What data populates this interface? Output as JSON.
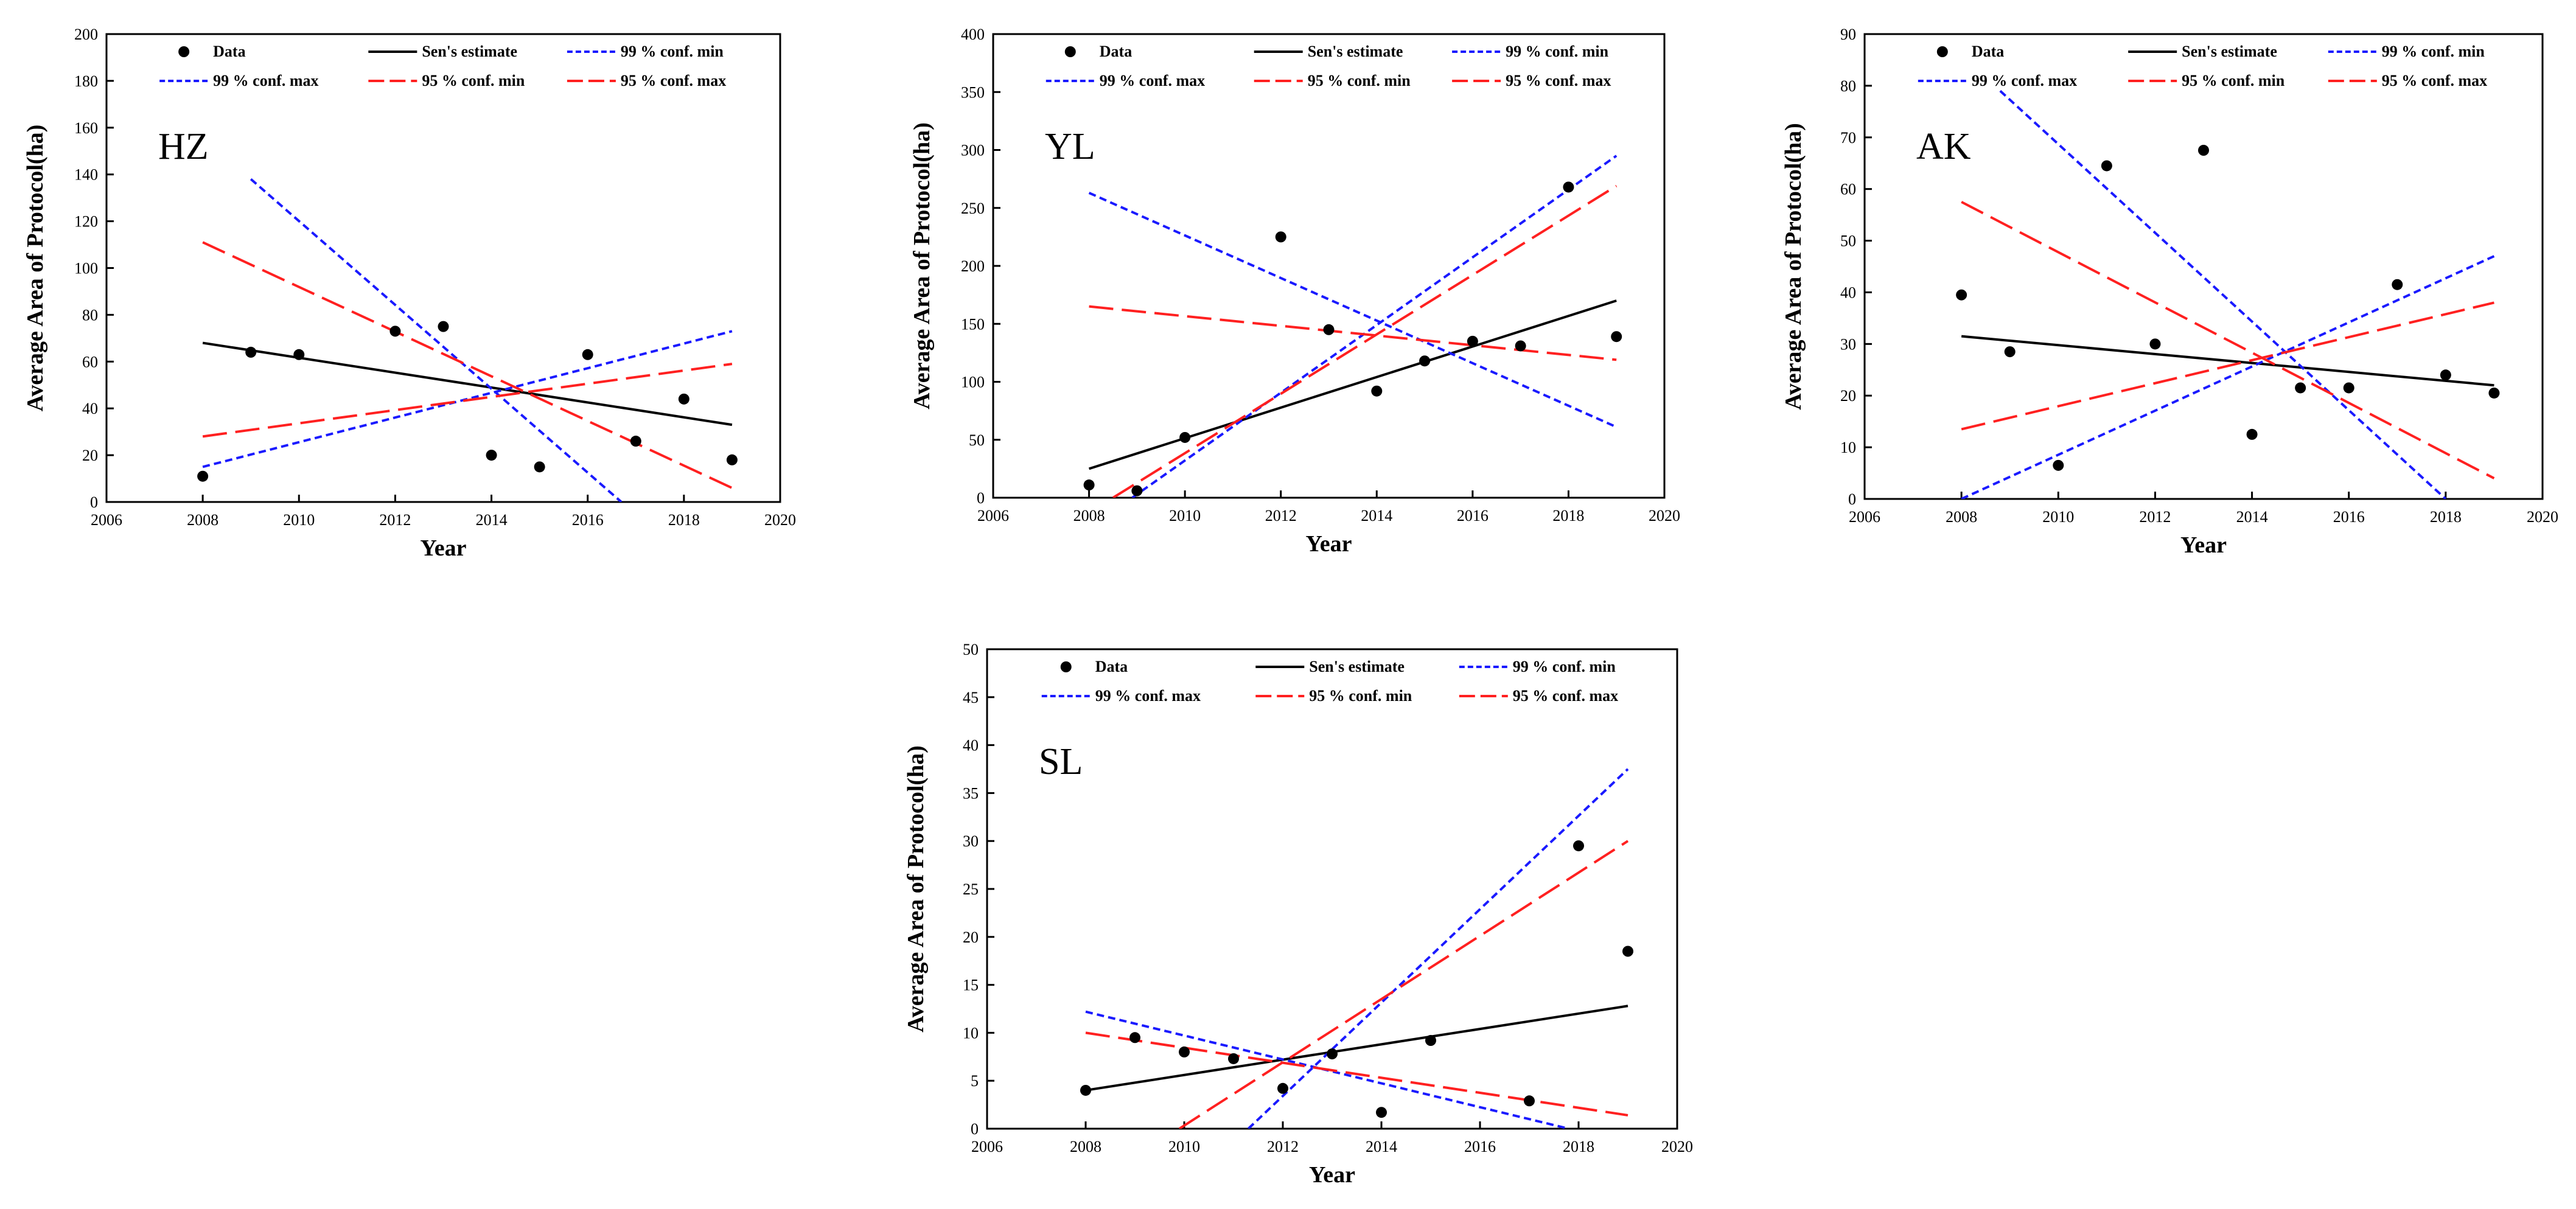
{
  "figure": {
    "legend_labels": [
      "Data",
      "Sen's estimate",
      "99 % conf. min",
      "99 % conf. max",
      "95 % conf. min",
      "95 % conf. max"
    ],
    "colors": {
      "data": "#000000",
      "sen": "#000000",
      "conf99": "#1a1aff",
      "conf95": "#ff2020"
    }
  },
  "chart_data": [
    {
      "type": "scatter",
      "label": "HZ",
      "xlabel": "Year",
      "ylabel": "Average Area of Protocol(ha)",
      "xlim": [
        2006,
        2020
      ],
      "ylim": [
        0,
        200
      ],
      "xticks": [
        2006,
        2008,
        2010,
        2012,
        2014,
        2016,
        2018,
        2020
      ],
      "yticks": [
        0,
        20,
        40,
        60,
        80,
        100,
        120,
        140,
        160,
        180,
        200
      ],
      "legend": "top",
      "points": {
        "x": [
          2008,
          2009,
          2010,
          2012,
          2013,
          2014,
          2015,
          2016,
          2017,
          2018,
          2019
        ],
        "y": [
          11,
          64,
          63,
          73,
          75,
          20,
          15,
          63,
          26,
          44,
          18
        ]
      },
      "lines": [
        {
          "name": "Sen's estimate",
          "x": [
            2008,
            2019
          ],
          "y": [
            68,
            33
          ]
        },
        {
          "name": "99 % conf. min",
          "x": [
            2009,
            2016.7
          ],
          "y": [
            138,
            0
          ]
        },
        {
          "name": "99 % conf. max",
          "x": [
            2008,
            2019
          ],
          "y": [
            15,
            73
          ]
        },
        {
          "name": "95 % conf. min",
          "x": [
            2008,
            2019
          ],
          "y": [
            111,
            6
          ]
        },
        {
          "name": "95 % conf. max",
          "x": [
            2008,
            2019
          ],
          "y": [
            28,
            59
          ]
        }
      ]
    },
    {
      "type": "scatter",
      "label": "YL",
      "xlabel": "Year",
      "ylabel": "Average Area of Protocol(ha)",
      "xlim": [
        2006,
        2020
      ],
      "ylim": [
        0,
        400
      ],
      "xticks": [
        2006,
        2008,
        2010,
        2012,
        2014,
        2016,
        2018,
        2020
      ],
      "yticks": [
        0,
        50,
        100,
        150,
        200,
        250,
        300,
        350,
        400
      ],
      "legend": "top",
      "points": {
        "x": [
          2008,
          2009,
          2010,
          2012,
          2013,
          2014,
          2015,
          2016,
          2017,
          2018,
          2019
        ],
        "y": [
          11,
          6,
          52,
          225,
          145,
          92,
          118,
          135,
          131,
          268,
          139
        ]
      },
      "lines": [
        {
          "name": "Sen's estimate",
          "x": [
            2008,
            2019
          ],
          "y": [
            25,
            170
          ]
        },
        {
          "name": "99 % conf. min",
          "x": [
            2008.9,
            2019
          ],
          "y": [
            0,
            295
          ]
        },
        {
          "name": "99 % conf. max",
          "x": [
            2008,
            2019
          ],
          "y": [
            263,
            61
          ]
        },
        {
          "name": "95 % conf. min",
          "x": [
            2008.5,
            2019
          ],
          "y": [
            0,
            269
          ]
        },
        {
          "name": "95 % conf. max",
          "x": [
            2008,
            2019
          ],
          "y": [
            165,
            119
          ]
        }
      ]
    },
    {
      "type": "scatter",
      "label": "AK",
      "xlabel": "Year",
      "ylabel": "Average Area of Protocol(ha)",
      "xlim": [
        2006,
        2020
      ],
      "ylim": [
        0,
        90
      ],
      "xticks": [
        2006,
        2008,
        2010,
        2012,
        2014,
        2016,
        2018,
        2020
      ],
      "yticks": [
        0,
        10,
        20,
        30,
        40,
        50,
        60,
        70,
        80,
        90
      ],
      "legend": "top",
      "points": {
        "x": [
          2008,
          2009,
          2010,
          2011,
          2012,
          2013,
          2014,
          2015,
          2016,
          2017,
          2018,
          2019
        ],
        "y": [
          39.5,
          28.5,
          6.5,
          64.5,
          30,
          67.5,
          12.5,
          21.5,
          21.5,
          41.5,
          24,
          20.5
        ]
      },
      "lines": [
        {
          "name": "Sen's estimate",
          "x": [
            2008,
            2019
          ],
          "y": [
            31.5,
            22
          ]
        },
        {
          "name": "99 % conf. min",
          "x": [
            2008.8,
            2018
          ],
          "y": [
            79,
            0
          ]
        },
        {
          "name": "99 % conf. max",
          "x": [
            2008,
            2019
          ],
          "y": [
            0,
            47
          ]
        },
        {
          "name": "95 % conf. min",
          "x": [
            2008,
            2019
          ],
          "y": [
            57.5,
            4
          ]
        },
        {
          "name": "95 % conf. max",
          "x": [
            2008,
            2019
          ],
          "y": [
            13.5,
            38
          ]
        }
      ]
    },
    {
      "type": "scatter",
      "label": "SL",
      "xlabel": "Year",
      "ylabel": "Average Area of Protocol(ha)",
      "xlim": [
        2006,
        2020
      ],
      "ylim": [
        0,
        50
      ],
      "xticks": [
        2006,
        2008,
        2010,
        2012,
        2014,
        2016,
        2018,
        2020
      ],
      "yticks": [
        0,
        5,
        10,
        15,
        20,
        25,
        30,
        35,
        40,
        45,
        50
      ],
      "legend": "top",
      "points": {
        "x": [
          2008,
          2009,
          2010,
          2011,
          2012,
          2013,
          2014,
          2015,
          2017,
          2018,
          2019
        ],
        "y": [
          4,
          9.5,
          8,
          7.3,
          4.2,
          7.8,
          1.7,
          9.2,
          2.9,
          29.5,
          18.5
        ]
      },
      "lines": [
        {
          "name": "Sen's estimate",
          "x": [
            2008,
            2019
          ],
          "y": [
            4,
            12.8
          ]
        },
        {
          "name": "99 % conf. min",
          "x": [
            2011.3,
            2019
          ],
          "y": [
            0,
            37.5
          ]
        },
        {
          "name": "99 % conf. max",
          "x": [
            2008,
            2017.8
          ],
          "y": [
            12.2,
            0
          ]
        },
        {
          "name": "95 % conf. min",
          "x": [
            2009.9,
            2019
          ],
          "y": [
            0,
            30
          ]
        },
        {
          "name": "95 % conf. max",
          "x": [
            2008,
            2019
          ],
          "y": [
            10,
            1.4
          ]
        }
      ]
    }
  ]
}
